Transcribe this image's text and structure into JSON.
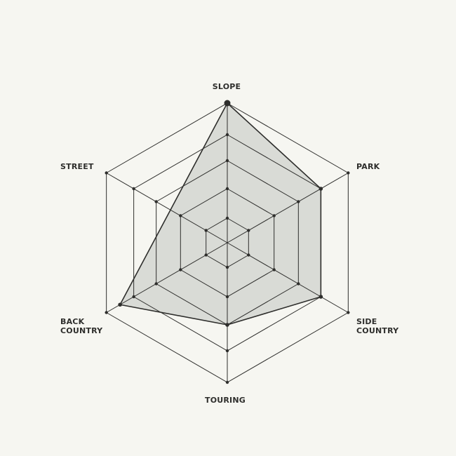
{
  "chart_data": {
    "type": "radar",
    "axes": [
      {
        "label": [
          "SLOPE"
        ],
        "value": 5
      },
      {
        "label": [
          "PARK"
        ],
        "value": 4
      },
      {
        "label": [
          "SIDE",
          "COUNTRY"
        ],
        "value": 4
      },
      {
        "label": [
          "TOURING"
        ],
        "value": 3
      },
      {
        "label": [
          "BACK",
          "COUNTRY"
        ],
        "value": 4.5
      },
      {
        "label": [
          "STREET"
        ],
        "value": null
      }
    ],
    "levels": 5,
    "range": [
      0,
      5
    ],
    "grid": true,
    "colors": {
      "background": "#f6f6f1",
      "fill": "#d9dbd6",
      "line": "#2e2e2c"
    }
  }
}
